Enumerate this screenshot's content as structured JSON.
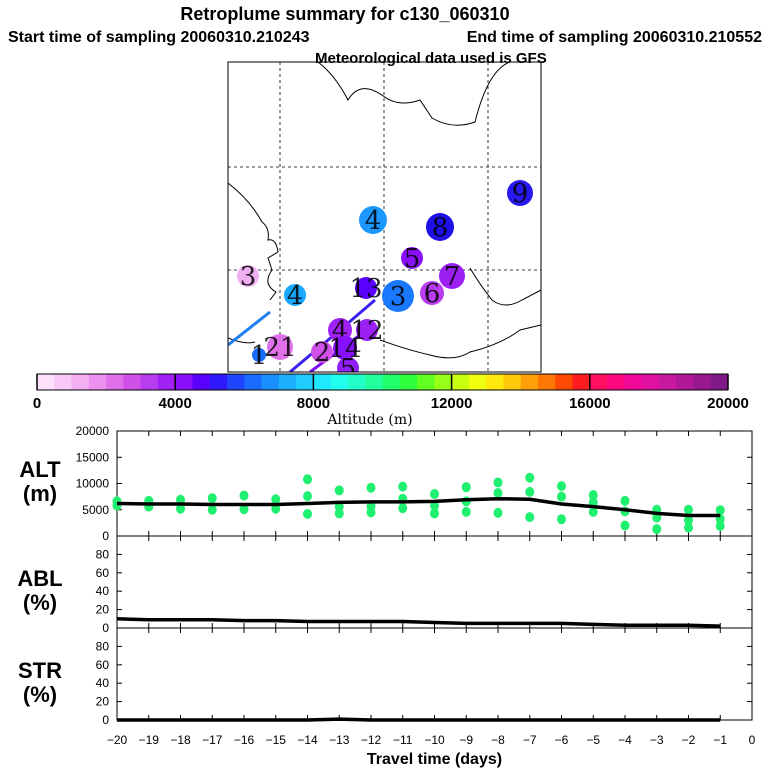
{
  "header": {
    "title": "Retroplume summary for c130_060310",
    "start_label": "Start time of sampling 20060310.210243",
    "end_label": "End time of sampling 20060310.210552",
    "met_label": "Meteorological data used is GFS"
  },
  "colorbar": {
    "ticks": [
      "0",
      "4000",
      "8000",
      "12000",
      "16000",
      "20000"
    ],
    "xlabel": "Altitude (m)",
    "colors": [
      "#fde0fb",
      "#f8c8f6",
      "#f2b0f2",
      "#eb90ee",
      "#e070ea",
      "#d050ea",
      "#b83cf0",
      "#a020f6",
      "#8810fc",
      "#5a00ff",
      "#3018ff",
      "#1e46ff",
      "#1a6cff",
      "#1a90ff",
      "#1eb0ff",
      "#20ccff",
      "#20e8ff",
      "#22ffee",
      "#22ffc8",
      "#22ff9c",
      "#22ff6c",
      "#30ff3c",
      "#60ff20",
      "#98ff18",
      "#c8ff10",
      "#f0ff10",
      "#ffe80c",
      "#ffc80a",
      "#ffa008",
      "#ff7806",
      "#ff4a04",
      "#ff1c20",
      "#ff1060",
      "#ff0880",
      "#f00898",
      "#e010a0",
      "#c818a0",
      "#b01898",
      "#981890",
      "#801888"
    ]
  },
  "map": {
    "clusters": [
      {
        "label": "9",
        "color": "#2818f0"
      },
      {
        "label": "8",
        "color": "#2010e8"
      },
      {
        "label": "4",
        "color": "#1a98ff"
      },
      {
        "label": "5",
        "color": "#8a10fa"
      },
      {
        "label": "7",
        "color": "#9a20f4"
      },
      {
        "label": "3",
        "color": "#f0b0f2"
      },
      {
        "label": "4",
        "color": "#1aa8ff"
      },
      {
        "label": "13",
        "color": "#5a00ff"
      },
      {
        "label": "3",
        "color": "#1a78ff"
      },
      {
        "label": "6",
        "color": "#b83cf0"
      },
      {
        "label": "12",
        "color": "#9a20f4"
      },
      {
        "label": "4",
        "color": "#a020f6"
      },
      {
        "label": "21",
        "color": "#e070ea"
      },
      {
        "label": "14",
        "color": "#8810fc"
      },
      {
        "label": "2",
        "color": "#d050ea"
      },
      {
        "label": "1",
        "color": "#1a6cff"
      },
      {
        "label": "5",
        "color": "#9020f8"
      }
    ]
  },
  "chart_data": [
    {
      "type": "line",
      "panel": "ALT",
      "title": "ALT",
      "ylabel": "(m)",
      "ylim": [
        0,
        20000
      ],
      "yticks": [
        "0",
        "5000",
        "10000",
        "15000",
        "20000"
      ],
      "x": [
        -20,
        -19,
        -18,
        -17,
        -16,
        -15,
        -14,
        -13,
        -12,
        -11,
        -10,
        -9,
        -8,
        -7,
        -6,
        -5,
        -4,
        -3,
        -2,
        -1
      ],
      "series": [
        {
          "name": "median altitude",
          "values": [
            6200,
            6100,
            6100,
            6000,
            6000,
            6000,
            6200,
            6400,
            6500,
            6500,
            6600,
            6900,
            7100,
            7000,
            6100,
            5600,
            5000,
            4300,
            3900,
            3900
          ]
        }
      ],
      "scatter": [
        {
          "x": -20,
          "values": [
            5800,
            6600
          ]
        },
        {
          "x": -19,
          "values": [
            5600,
            6700
          ]
        },
        {
          "x": -18,
          "values": [
            5200,
            6900
          ]
        },
        {
          "x": -17,
          "values": [
            5000,
            7200
          ]
        },
        {
          "x": -16,
          "values": [
            5100,
            7700
          ]
        },
        {
          "x": -15,
          "values": [
            5200,
            7000
          ]
        },
        {
          "x": -14,
          "values": [
            4200,
            7600,
            10800
          ]
        },
        {
          "x": -13,
          "values": [
            4300,
            5600,
            8700
          ]
        },
        {
          "x": -12,
          "values": [
            4500,
            5700,
            9200
          ]
        },
        {
          "x": -11,
          "values": [
            5300,
            7100,
            9400
          ]
        },
        {
          "x": -10,
          "values": [
            4300,
            5800,
            8000
          ]
        },
        {
          "x": -9,
          "values": [
            4600,
            6600,
            9300
          ]
        },
        {
          "x": -8,
          "values": [
            4400,
            8200,
            10200
          ]
        },
        {
          "x": -7,
          "values": [
            3600,
            8400,
            11100
          ]
        },
        {
          "x": -6,
          "values": [
            3200,
            7500,
            9500
          ]
        },
        {
          "x": -5,
          "values": [
            4600,
            6400,
            7800
          ]
        },
        {
          "x": -4,
          "values": [
            2000,
            4700,
            6700
          ]
        },
        {
          "x": -3,
          "values": [
            1300,
            3500,
            5000
          ]
        },
        {
          "x": -2,
          "values": [
            1600,
            3000,
            5000
          ]
        },
        {
          "x": -1,
          "values": [
            1900,
            3200,
            4900
          ]
        }
      ]
    },
    {
      "type": "line",
      "panel": "ABL",
      "title": "ABL",
      "ylabel": "(%)",
      "ylim": [
        0,
        100
      ],
      "yticks": [
        "0",
        "20",
        "40",
        "60",
        "80"
      ],
      "x": [
        -20,
        -19,
        -18,
        -17,
        -16,
        -15,
        -14,
        -13,
        -12,
        -11,
        -10,
        -9,
        -8,
        -7,
        -6,
        -5,
        -4,
        -3,
        -2,
        -1
      ],
      "series": [
        {
          "name": "ABL fraction",
          "values": [
            10,
            9,
            9,
            9,
            8,
            8,
            7,
            7,
            7,
            7,
            6,
            5,
            5,
            5,
            5,
            4,
            3,
            3,
            3,
            2
          ]
        }
      ]
    },
    {
      "type": "line",
      "panel": "STR",
      "title": "STR",
      "ylabel": "(%)",
      "ylim": [
        0,
        100
      ],
      "yticks": [
        "0",
        "20",
        "40",
        "60",
        "80"
      ],
      "xlabel": "Travel time (days)",
      "xticks": [
        "-20",
        "-19",
        "-18",
        "-17",
        "-16",
        "-15",
        "-14",
        "-13",
        "-12",
        "-11",
        "-10",
        "-9",
        "-8",
        "-7",
        "-6",
        "-5",
        "-4",
        "-3",
        "-2",
        "-1",
        "0"
      ],
      "x": [
        -20,
        -19,
        -18,
        -17,
        -16,
        -15,
        -14,
        -13,
        -12,
        -11,
        -10,
        -9,
        -8,
        -7,
        -6,
        -5,
        -4,
        -3,
        -2,
        -1
      ],
      "series": [
        {
          "name": "stratospheric fraction",
          "values": [
            0,
            0,
            0,
            0,
            0,
            0,
            0,
            1,
            0,
            0,
            0,
            0,
            0,
            0,
            0,
            0,
            0,
            0,
            0,
            0
          ]
        }
      ]
    }
  ]
}
